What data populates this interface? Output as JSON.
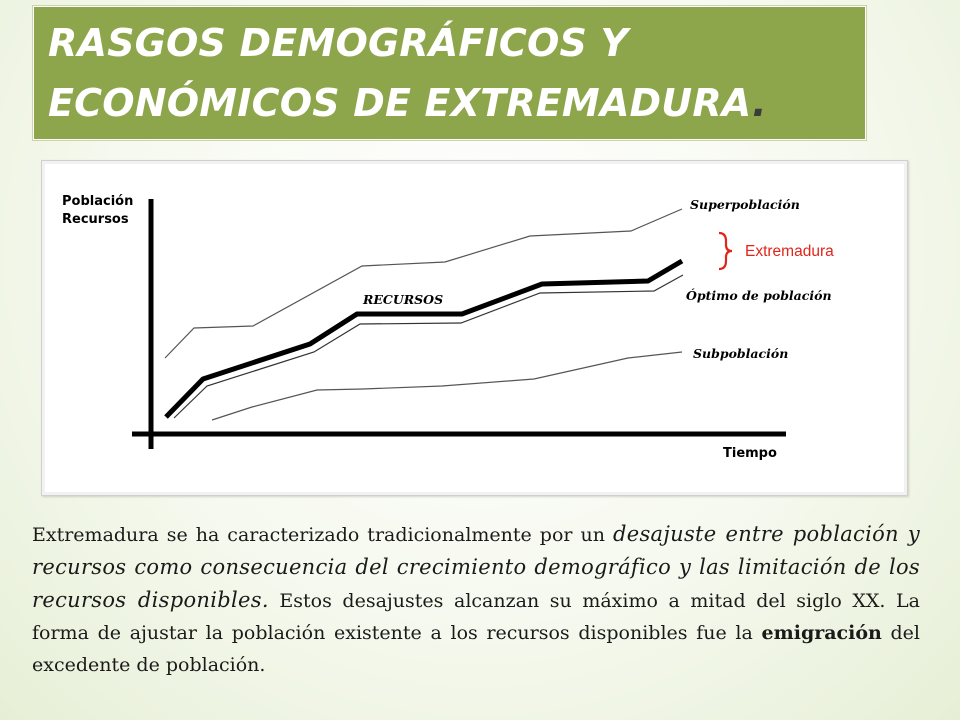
{
  "slide": {
    "title_line1": "RASGOS DEMOGRÁFICOS Y",
    "title_line2": "ECONÓMICOS DE EXTREMADURA",
    "title_dot": "."
  },
  "diagram": {
    "axis_y_label_1": "Población",
    "axis_y_label_2": "Recursos",
    "axis_x_label": "Tiempo",
    "label_resources": "RECURSOS",
    "label_overpopulation": "Superpoblación",
    "label_optimum": "Óptimo de población",
    "label_underpopulation": "Subpoblación",
    "label_region": "Extremadura",
    "colors": {
      "region_label": "#e0251b",
      "lines": "#000000"
    }
  },
  "text": {
    "part1": "Extremadura se ha caracterizado tradicionalmente por un ",
    "part2_italic": "desajuste entre población y recursos como consecuencia del crecimiento demográfico y las  limitación de los recursos disponibles.",
    "part3": " Estos desajustes alcanzan su máximo a  mitad del siglo XX. La forma de ajustar la población existente a los recursos disponibles fue la ",
    "part4_bold": "emigración",
    "part5": " del excedente de población."
  }
}
